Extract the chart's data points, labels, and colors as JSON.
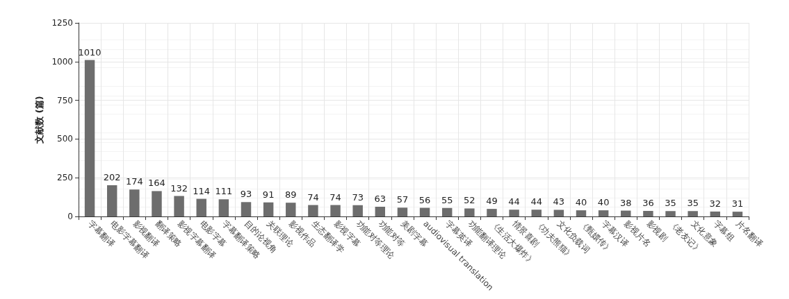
{
  "chart_data": {
    "type": "bar",
    "ylabel": "文献数 (篇)",
    "categories": [
      "字幕翻译",
      "电影字幕翻译",
      "影视翻译",
      "翻译策略",
      "影视字幕翻译",
      "电影字幕",
      "字幕翻译策略",
      "目的论视角",
      "关联理论",
      "影视作品",
      "生态翻译学",
      "影视字幕",
      "功能对等理论",
      "功能对等",
      "美剧字幕",
      "audiovisual translation",
      "字幕英译",
      "功能翻译理论",
      "《生活大爆炸》",
      "情景喜剧",
      "《功夫熊猫》",
      "文化负载词",
      "《甄嬛传》",
      "字幕汉译",
      "影视片名",
      "影视剧",
      "《老友记》",
      "文化意象",
      "字幕组",
      "片名翻译"
    ],
    "values": [
      1010,
      202,
      174,
      164,
      132,
      114,
      111,
      93,
      91,
      89,
      74,
      74,
      73,
      63,
      57,
      56,
      55,
      52,
      49,
      44,
      44,
      43,
      40,
      40,
      38,
      36,
      35,
      35,
      32,
      31
    ],
    "color": "#6d6d6d",
    "ylim": [
      0,
      1250
    ],
    "yticks": [
      0,
      250,
      500,
      750,
      1000,
      1250
    ],
    "grid": true,
    "data_labels": true
  }
}
